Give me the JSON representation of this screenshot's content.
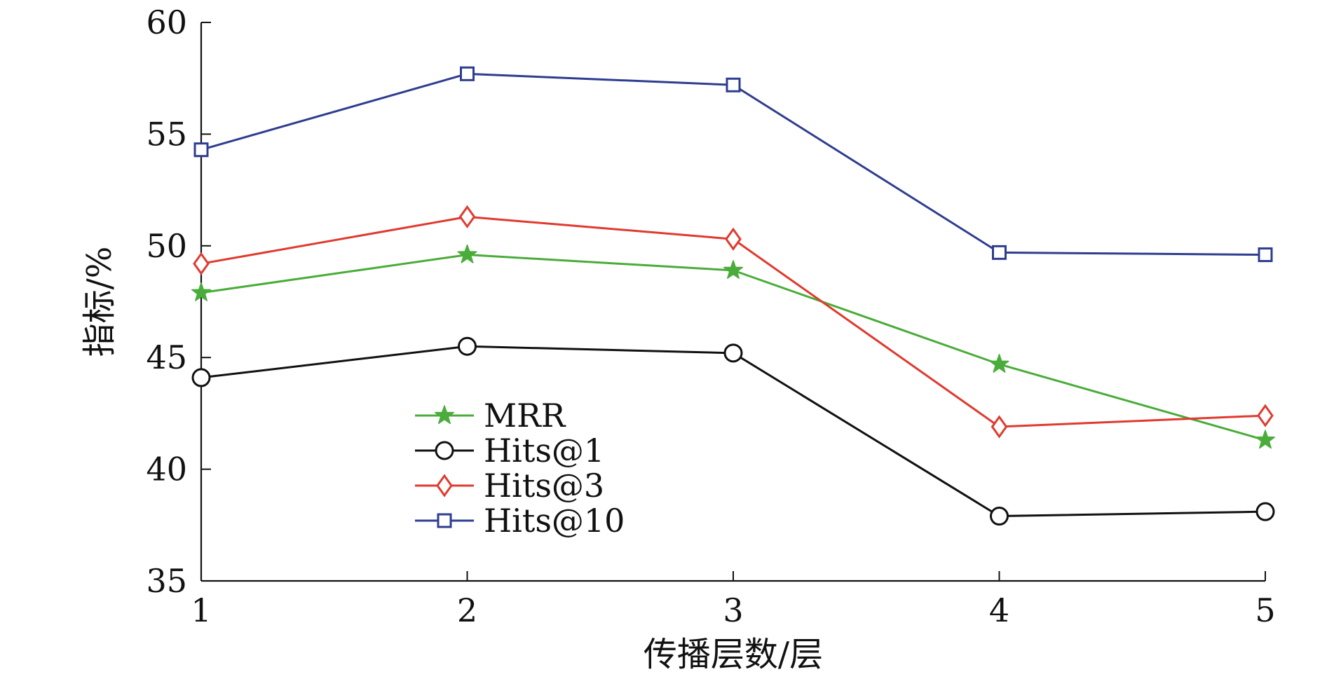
{
  "chart_data": {
    "type": "line",
    "xlabel": "传播层数/层",
    "ylabel": "指标/%",
    "x": [
      1,
      2,
      3,
      4,
      5
    ],
    "xlim": [
      1,
      5
    ],
    "ylim": [
      35,
      60
    ],
    "xticks": [
      "1",
      "2",
      "3",
      "4",
      "5"
    ],
    "yticks": [
      "35",
      "40",
      "45",
      "50",
      "55",
      "60"
    ],
    "grid": false,
    "legend_position": "lower-center",
    "series": [
      {
        "name": "MRR",
        "values": [
          47.9,
          49.6,
          48.9,
          44.7,
          41.3
        ],
        "color": "#4aac3a",
        "marker": "star"
      },
      {
        "name": "Hits@1",
        "values": [
          44.1,
          45.5,
          45.2,
          37.9,
          38.1
        ],
        "color": "#111111",
        "marker": "circle"
      },
      {
        "name": "Hits@3",
        "values": [
          49.2,
          51.3,
          50.3,
          41.9,
          42.4
        ],
        "color": "#e03a2f",
        "marker": "diamond"
      },
      {
        "name": "Hits@10",
        "values": [
          54.3,
          57.7,
          57.2,
          49.7,
          49.6
        ],
        "color": "#2e3d8f",
        "marker": "square"
      }
    ]
  }
}
